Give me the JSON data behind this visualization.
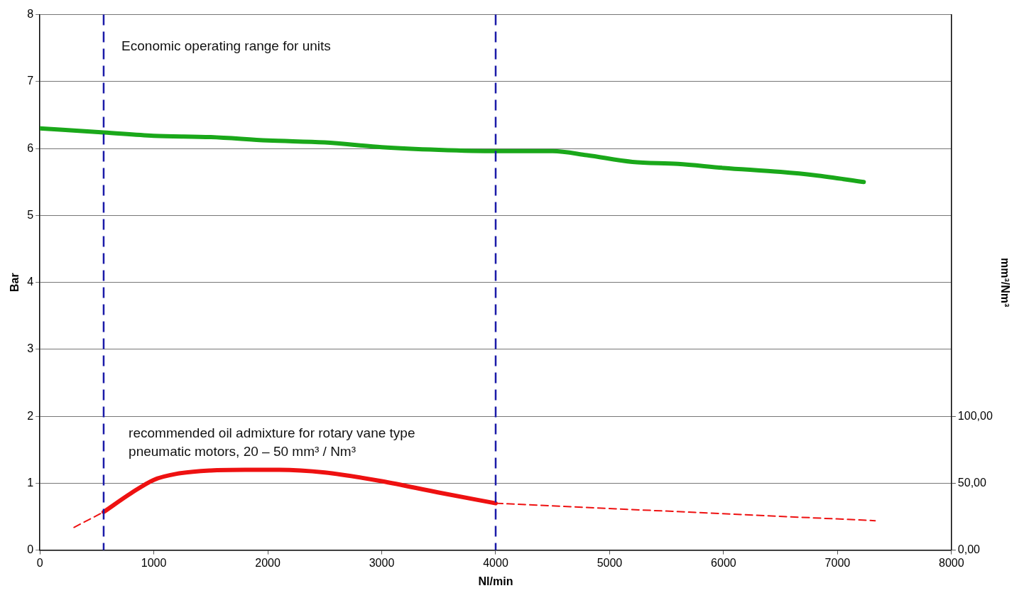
{
  "chart_data": {
    "type": "line",
    "xlabel": "Nl/min",
    "ylabel": "Bar",
    "y2label": "mm³/Nm³",
    "annotations": [
      "Economic operating range for units",
      "recommended oil admixture for rotary vane type\npneumatic motors, 20 – 50 mm³ / Nm³"
    ],
    "xlim": [
      0,
      8000
    ],
    "xticks": [
      0,
      1000,
      2000,
      3000,
      4000,
      5000,
      6000,
      7000,
      8000
    ],
    "ylim": [
      0,
      8
    ],
    "yticks": [
      0,
      1,
      2,
      3,
      4,
      5,
      6,
      7,
      8
    ],
    "y2lim": [
      0,
      400
    ],
    "y2ticks": [
      {
        "value": 0,
        "label": "0,00"
      },
      {
        "value": 50,
        "label": "50,00"
      },
      {
        "value": 100,
        "label": "100,00"
      }
    ],
    "grid": "y",
    "legend": false,
    "marker": "none",
    "ref_lines": [
      {
        "axis": "x",
        "value": 560,
        "color": "#1a1aa8",
        "line_style": "dashed"
      },
      {
        "axis": "x",
        "value": 4000,
        "color": "#1a1aa8",
        "line_style": "dashed"
      }
    ],
    "series": [
      {
        "color": "#1aa81a",
        "line_style": "solid",
        "x": [
          0,
          560,
          1000,
          1500,
          2000,
          2500,
          3000,
          3500,
          4000,
          4500,
          4800,
          5200,
          5600,
          6000,
          6500,
          6800,
          7230
        ],
        "values": [
          6.3,
          6.24,
          6.19,
          6.17,
          6.12,
          6.09,
          6.02,
          5.98,
          5.96,
          5.96,
          5.9,
          5.8,
          5.77,
          5.71,
          5.65,
          5.6,
          5.5
        ]
      },
      {
        "color": "#ee1111",
        "axis": "y2",
        "line_style": "solid",
        "x": [
          560,
          800,
          1000,
          1200,
          1500,
          1800,
          2100,
          2500,
          3000,
          3500,
          4000
        ],
        "values": [
          28.5,
          42.5,
          52.5,
          57,
          59.5,
          60,
          60,
          58,
          51.5,
          43,
          35
        ]
      },
      {
        "color": "#ee1111",
        "axis": "y2",
        "line_style": "dashed",
        "x": [
          300,
          560
        ],
        "values": [
          17,
          28.5
        ]
      },
      {
        "color": "#ee1111",
        "axis": "y2",
        "line_style": "dashed",
        "x": [
          4000,
          7330
        ],
        "values": [
          35,
          22
        ]
      }
    ]
  }
}
